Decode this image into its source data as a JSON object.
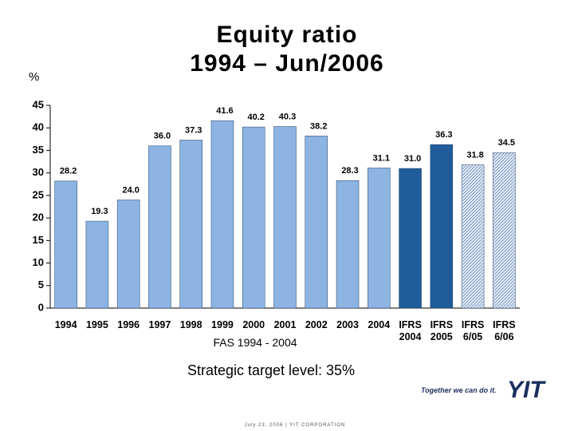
{
  "chart_data": {
    "type": "bar",
    "title": "Equity ratio\n1994 – Jun/2006",
    "y_label": "%",
    "annotation": "FAS 1994 - 2004",
    "subtitle": "Strategic target level: 35%",
    "categories": [
      "1994",
      "1995",
      "1996",
      "1997",
      "1998",
      "1999",
      "2000",
      "2001",
      "2002",
      "2003",
      "2004",
      "IFRS\n2004",
      "IFRS\n2005",
      "IFRS\n6/05",
      "IFRS\n6/06"
    ],
    "values": [
      28.2,
      19.3,
      24.0,
      36.0,
      37.3,
      41.6,
      40.2,
      40.3,
      38.2,
      28.3,
      31.1,
      31.0,
      36.3,
      31.8,
      34.5
    ],
    "value_labels": [
      "28.2",
      "19.3",
      "24.0",
      "36.0",
      "37.3",
      "41.6",
      "40.2",
      "40.3",
      "38.2",
      "28.3",
      "31.1",
      "31.0",
      "36.3",
      "31.8",
      "34.5"
    ],
    "colors": [
      "#8db4e2",
      "#8db4e2",
      "#8db4e2",
      "#8db4e2",
      "#8db4e2",
      "#8db4e2",
      "#8db4e2",
      "#8db4e2",
      "#8db4e2",
      "#8db4e2",
      "#8db4e2",
      "#1f5c99",
      "#1f5c99",
      "#dfe9f5",
      "#dfe9f5"
    ],
    "hatched": [
      false,
      false,
      false,
      false,
      false,
      false,
      false,
      false,
      false,
      false,
      false,
      false,
      false,
      true,
      true
    ],
    "ylim": [
      0,
      45
    ],
    "yticks": [
      0,
      5,
      10,
      15,
      20,
      25,
      30,
      35,
      40,
      45
    ]
  },
  "footer": {
    "slogan": "Together we can do it.",
    "logo": "YIT",
    "text": "July 23, 2006  |  YIT CORPORATION"
  }
}
